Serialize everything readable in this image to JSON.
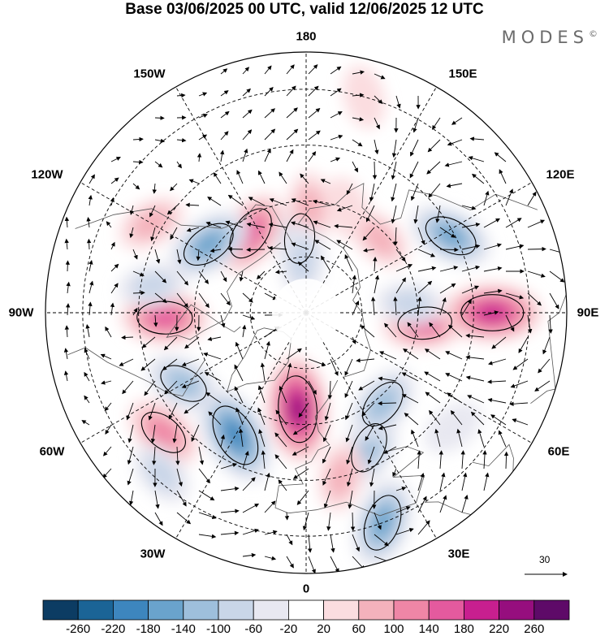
{
  "title": "Base 03/06/2025 00 UTC, valid 12/06/2025 12 UTC",
  "brand": "MODES",
  "brand_mark": "©",
  "longitude_labels": {
    "lon_180": "180",
    "lon_150e": "150E",
    "lon_120e": "120E",
    "lon_90e": "90E",
    "lon_60e": "60E",
    "lon_30e": "30E",
    "lon_0": "0",
    "lon_30w": "30W",
    "lon_60w": "60W",
    "lon_90w": "90W",
    "lon_120w": "120W",
    "lon_150w": "150W"
  },
  "reference_vector": {
    "label": "30"
  },
  "colorbar": {
    "colors": [
      "#0c3c63",
      "#1b6496",
      "#3d86be",
      "#6aa3cc",
      "#9ebfdc",
      "#c9d6e8",
      "#e8e8f1",
      "#ffffff",
      "#fbdde0",
      "#f4b2bc",
      "#ef86a6",
      "#e45a9e",
      "#c81f8f",
      "#960e7e",
      "#5e0a68"
    ],
    "tick_labels": [
      "-260",
      "-220",
      "-180",
      "-140",
      "-100",
      "-60",
      "-20",
      "20",
      "60",
      "100",
      "140",
      "180",
      "220",
      "260"
    ]
  },
  "anomaly_centers": [
    {
      "lat": 70,
      "lon": -175,
      "value": -110
    },
    {
      "lat": 62,
      "lon": 178,
      "value": 80
    },
    {
      "lat": 60,
      "lon": 158,
      "value": 50
    },
    {
      "lat": 64,
      "lon": -145,
      "value": 150
    },
    {
      "lat": 76,
      "lon": -176,
      "value": -80
    },
    {
      "lat": 58,
      "lon": -125,
      "value": -150
    },
    {
      "lat": 42,
      "lon": -120,
      "value": 70
    },
    {
      "lat": 52,
      "lon": -88,
      "value": 150
    },
    {
      "lat": 48,
      "lon": -100,
      "value": -60
    },
    {
      "lat": 52,
      "lon": -60,
      "value": -110
    },
    {
      "lat": 40,
      "lon": -50,
      "value": 120
    },
    {
      "lat": 52,
      "lon": -30,
      "value": -210
    },
    {
      "lat": 32,
      "lon": -42,
      "value": -60
    },
    {
      "lat": 64,
      "lon": -5,
      "value": 230
    },
    {
      "lat": 50,
      "lon": 25,
      "value": -120
    },
    {
      "lat": 30,
      "lon": 20,
      "value": -160
    },
    {
      "lat": 45,
      "lon": 12,
      "value": 70
    },
    {
      "lat": 58,
      "lon": 40,
      "value": -120
    },
    {
      "lat": 40,
      "lon": 52,
      "value": -40
    },
    {
      "lat": 58,
      "lon": 85,
      "value": 140
    },
    {
      "lat": 40,
      "lon": 90,
      "value": 200
    },
    {
      "lat": 46,
      "lon": 118,
      "value": -140
    },
    {
      "lat": 62,
      "lon": 95,
      "value": -60
    },
    {
      "lat": 62,
      "lon": 135,
      "value": 60
    },
    {
      "lat": 30,
      "lon": 165,
      "value": 40
    }
  ]
}
